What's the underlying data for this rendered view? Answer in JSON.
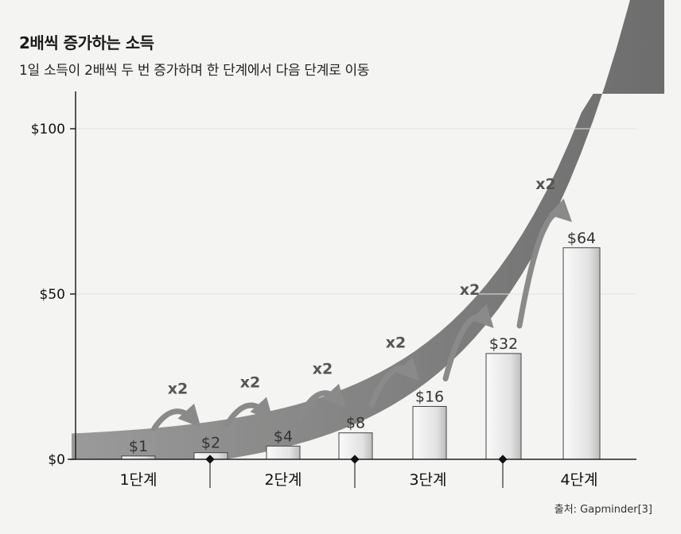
{
  "chart_data": {
    "type": "bar",
    "title": "2배씩 증가하는 소득",
    "subtitle": "1일 소득이 2배씩 두 번 증가하며 한 단계에서 다음 단계로 이동",
    "y_ticks": [
      {
        "value": 0,
        "label": "$0"
      },
      {
        "value": 50,
        "label": "$50"
      },
      {
        "value": 100,
        "label": "$100"
      }
    ],
    "ylim": [
      0,
      112
    ],
    "bars": [
      {
        "value": 1,
        "label": "$1"
      },
      {
        "value": 2,
        "label": "$2"
      },
      {
        "value": 4,
        "label": "$4"
      },
      {
        "value": 8,
        "label": "$8"
      },
      {
        "value": 16,
        "label": "$16"
      },
      {
        "value": 32,
        "label": "$32"
      },
      {
        "value": 64,
        "label": "$64"
      }
    ],
    "stages": [
      "1단계",
      "2단계",
      "3단계",
      "4단계"
    ],
    "multiplier_label": "x2",
    "source": "출처: Gapminder[3]",
    "colors": {
      "curve": "#6e6e6e",
      "bar_light": "#f0f0f0",
      "bar_dark": "#b5b5b5",
      "arrow": "#8a8a8a"
    }
  }
}
